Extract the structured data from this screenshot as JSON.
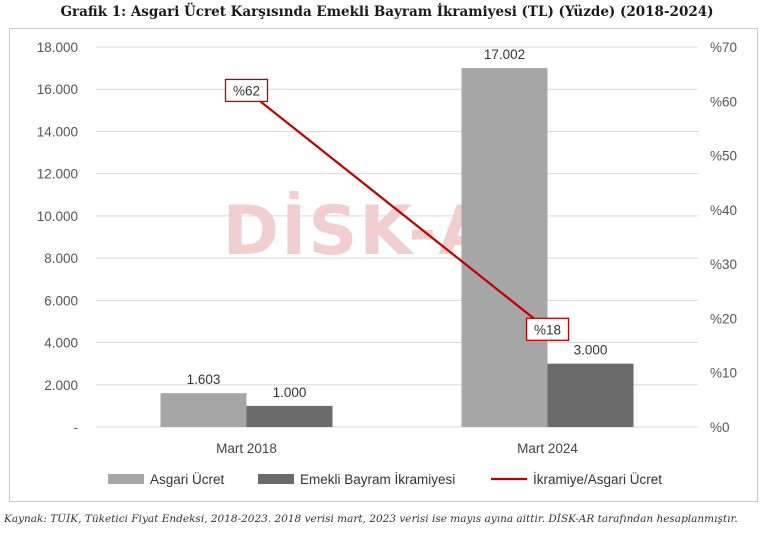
{
  "title": "Grafik 1: Asgari Ücret Karşısında Emekli Bayram İkramiyesi (TL) (Yüzde) (2018-2024)",
  "source": "Kaynak: TÜİK, Tüketici Fiyat Endeksi, 2018-2023. 2018 verisi mart, 2023 verisi ise mayıs ayına aittir.  DİSK-AR tarafından hesaplanmıştır.",
  "watermark": "DİSK-AR",
  "colors": {
    "asgari": "#a6a6a6",
    "ikramiye": "#6b6b6b",
    "ratio": "#c00000",
    "grid": "#d9d9d9",
    "watermark": "#e8a9a9"
  },
  "chart_data": {
    "type": "bar",
    "categories": [
      "Mart 2018",
      "Mart 2024"
    ],
    "series": [
      {
        "name": "Asgari Ücret",
        "axis": "left",
        "values": [
          1603,
          17002
        ],
        "labels": [
          "1.603",
          "17.002"
        ]
      },
      {
        "name": "Emekli Bayram İkramiyesi",
        "axis": "left",
        "values": [
          1000,
          3000
        ],
        "labels": [
          "1.000",
          "3.000"
        ]
      },
      {
        "name": "İkramiye/Asgari Ücret",
        "axis": "right",
        "type": "line",
        "values": [
          62,
          18
        ],
        "labels": [
          "%62",
          "%18"
        ]
      }
    ],
    "ylim": [
      0,
      18000
    ],
    "y_ticks": [
      0,
      2000,
      4000,
      6000,
      8000,
      10000,
      12000,
      14000,
      16000,
      18000
    ],
    "y_tick_labels": [
      "-",
      "2.000",
      "4.000",
      "6.000",
      "8.000",
      "10.000",
      "12.000",
      "14.000",
      "16.000",
      "18.000"
    ],
    "y2lim": [
      0,
      70
    ],
    "y2_ticks": [
      0,
      10,
      20,
      30,
      40,
      50,
      60,
      70
    ],
    "y2_tick_labels": [
      "%0",
      "%10",
      "%20",
      "%30",
      "%40",
      "%50",
      "%60",
      "%70"
    ],
    "legend": [
      "Asgari Ücret",
      "Emekli Bayram İkramiyesi",
      "İkramiye/Asgari Ücret"
    ],
    "legend_position": "bottom",
    "grid": true
  }
}
